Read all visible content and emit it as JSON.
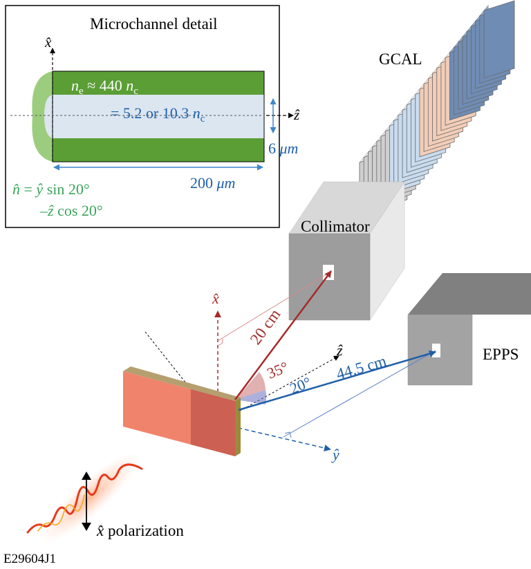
{
  "inset": {
    "title": "Microchannel detail",
    "axis_x": "x̂",
    "axis_z": "ẑ",
    "wall_density": {
      "sym": "n",
      "sub": "e",
      "mid": " ≈ 440 ",
      "unit": "n",
      "unit_sub": "c"
    },
    "channel_density": {
      "text": "= 5.2 or 10.3 ",
      "unit": "n",
      "unit_sub": "c"
    },
    "width": {
      "value": "6 ",
      "unit": "μm"
    },
    "length": {
      "value": "200 ",
      "unit": "μm"
    },
    "normal_line1": {
      "lhs": "n̂",
      "mid": " = ",
      "axis": "ŷ",
      "rest": " sin 20°"
    },
    "normal_line2": {
      "sign": "–",
      "axis": "ẑ",
      "rest": " cos 20°"
    }
  },
  "labels": {
    "gcal": "GCAL",
    "collimator": "Collimator",
    "epps": "EPPS",
    "axis_x": "x̂",
    "axis_z": "ẑ",
    "axis_y": "ŷ",
    "dist_collimator": "20 cm",
    "angle_collimator": "35°",
    "angle_epps": "20°",
    "dist_epps": "44.5 cm",
    "polarization_axis": "x̂",
    "polarization_text": " polarization",
    "figure_id": "E29604J1"
  },
  "colors": {
    "wall_green": "#5a9e35",
    "channel_fill": "#dce6f1",
    "blue": "#1f5fa8",
    "dark_red": "#a42a2a",
    "green_text": "#3aa35a",
    "target_red": "#f0836c",
    "gcal_blue": "#6f8cb4",
    "gcal_peach": "#f2cdb8",
    "gcal_lightblue": "#c9dcef",
    "gcal_gray": "#cfcfcf",
    "detector_gray": "#9a9a9a"
  }
}
